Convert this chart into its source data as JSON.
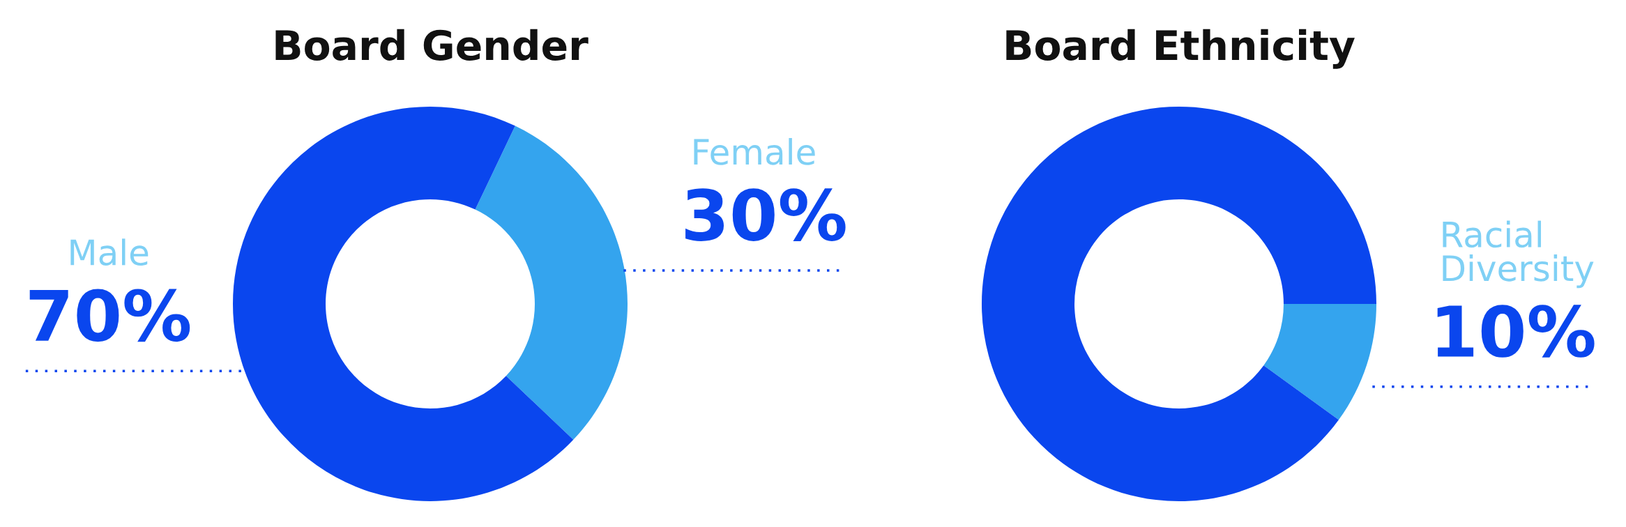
{
  "chart_data": [
    {
      "type": "donut",
      "title": "Board Gender",
      "categories": [
        "Female",
        "Male"
      ],
      "values": [
        30,
        70
      ],
      "colors": [
        "#34a4ee",
        "#0a46ee"
      ],
      "value_labels": [
        "30%",
        "70%"
      ]
    },
    {
      "type": "donut",
      "title": "Board Ethnicity",
      "categories": [
        "Racial\nDiversity",
        null
      ],
      "values": [
        10,
        90
      ],
      "colors": [
        "#34a4ee",
        "#0a46ee"
      ],
      "value_labels": [
        "10%",
        null
      ]
    }
  ]
}
